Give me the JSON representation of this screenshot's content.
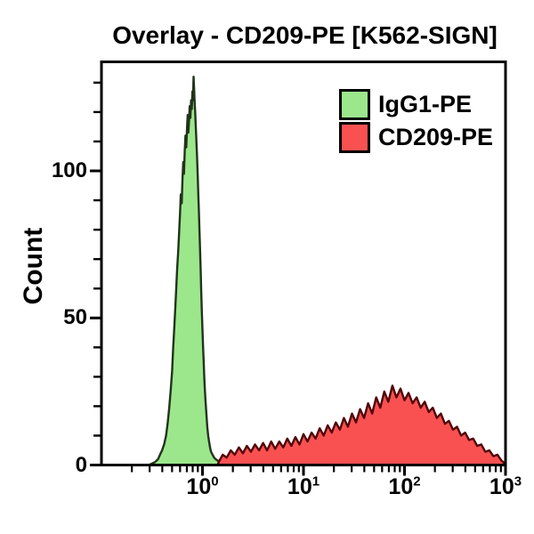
{
  "chart_data": {
    "type": "area",
    "title": "Overlay - CD209-PE [K562-SIGN]",
    "ylabel": "Count",
    "xlabel": "",
    "xscale": "log",
    "xlim_log": [
      -1,
      3
    ],
    "ylim": [
      0,
      137
    ],
    "grid": false,
    "legend_position": "top-right-inside",
    "frame_color": "#000000",
    "y_major_ticks": [
      {
        "value": 0,
        "label": "0"
      },
      {
        "value": 50,
        "label": "50"
      },
      {
        "value": 100,
        "label": "100"
      }
    ],
    "y_minor_tick_step": 10,
    "y_minor_tick_max": 130,
    "x_major_ticks": [
      {
        "log": 0,
        "base": "10",
        "exp": "0"
      },
      {
        "log": 1,
        "base": "10",
        "exp": "1"
      },
      {
        "log": 2,
        "base": "10",
        "exp": "2"
      },
      {
        "log": 3,
        "base": "10",
        "exp": "3"
      }
    ],
    "series": [
      {
        "name": "IgG1-PE",
        "fill": "#9CE78C",
        "edge": "#22331c",
        "peak_log_x": -0.09,
        "peak_count": 132,
        "points": [
          [
            -0.53,
            0
          ],
          [
            -0.5,
            0.5
          ],
          [
            -0.47,
            1
          ],
          [
            -0.44,
            2
          ],
          [
            -0.42,
            3.5
          ],
          [
            -0.4,
            5
          ],
          [
            -0.38,
            7
          ],
          [
            -0.36,
            10
          ],
          [
            -0.345,
            14
          ],
          [
            -0.33,
            19
          ],
          [
            -0.315,
            25
          ],
          [
            -0.3,
            32
          ],
          [
            -0.29,
            40
          ],
          [
            -0.28,
            46
          ],
          [
            -0.27,
            53
          ],
          [
            -0.26,
            60
          ],
          [
            -0.25,
            67
          ],
          [
            -0.24,
            73
          ],
          [
            -0.23,
            80
          ],
          [
            -0.22,
            87
          ],
          [
            -0.215,
            92
          ],
          [
            -0.205,
            89
          ],
          [
            -0.198,
            97
          ],
          [
            -0.19,
            103
          ],
          [
            -0.183,
            99
          ],
          [
            -0.175,
            107
          ],
          [
            -0.168,
            112
          ],
          [
            -0.16,
            108
          ],
          [
            -0.152,
            115
          ],
          [
            -0.146,
            119
          ],
          [
            -0.14,
            113
          ],
          [
            -0.133,
            117
          ],
          [
            -0.127,
            122
          ],
          [
            -0.12,
            118
          ],
          [
            -0.113,
            124
          ],
          [
            -0.106,
            121
          ],
          [
            -0.1,
            127
          ],
          [
            -0.094,
            124
          ],
          [
            -0.088,
            132
          ],
          [
            -0.083,
            128
          ],
          [
            -0.078,
            124
          ],
          [
            -0.072,
            120
          ],
          [
            -0.066,
            115
          ],
          [
            -0.06,
            110
          ],
          [
            -0.054,
            105
          ],
          [
            -0.048,
            99
          ],
          [
            -0.042,
            93
          ],
          [
            -0.036,
            87
          ],
          [
            -0.03,
            80
          ],
          [
            -0.024,
            73
          ],
          [
            -0.018,
            66
          ],
          [
            -0.012,
            59
          ],
          [
            -0.006,
            52
          ],
          [
            0.0,
            46
          ],
          [
            0.006,
            40
          ],
          [
            0.012,
            35
          ],
          [
            0.018,
            30
          ],
          [
            0.025,
            25
          ],
          [
            0.032,
            21
          ],
          [
            0.04,
            17
          ],
          [
            0.048,
            13
          ],
          [
            0.056,
            10
          ],
          [
            0.065,
            8
          ],
          [
            0.075,
            6
          ],
          [
            0.085,
            4.5
          ],
          [
            0.1,
            3.5
          ],
          [
            0.115,
            2.5
          ],
          [
            0.13,
            2
          ],
          [
            0.15,
            1.5
          ],
          [
            0.17,
            1.2
          ],
          [
            0.19,
            1
          ],
          [
            0.21,
            0.8
          ],
          [
            0.23,
            0.5
          ],
          [
            0.25,
            0.3
          ],
          [
            0.27,
            0
          ]
        ]
      },
      {
        "name": "CD209-PE",
        "fill": "#F95151",
        "edge": "#520508",
        "peak_log_x": 1.88,
        "peak_count": 27,
        "points": [
          [
            0.15,
            0
          ],
          [
            0.16,
            1
          ],
          [
            0.2,
            3.5
          ],
          [
            0.24,
            2.5
          ],
          [
            0.28,
            5
          ],
          [
            0.32,
            3.5
          ],
          [
            0.36,
            6
          ],
          [
            0.4,
            4
          ],
          [
            0.44,
            6.5
          ],
          [
            0.48,
            4.5
          ],
          [
            0.52,
            7
          ],
          [
            0.56,
            5
          ],
          [
            0.6,
            7.5
          ],
          [
            0.64,
            5
          ],
          [
            0.68,
            8
          ],
          [
            0.72,
            5.5
          ],
          [
            0.76,
            8
          ],
          [
            0.8,
            6
          ],
          [
            0.84,
            9
          ],
          [
            0.88,
            6.5
          ],
          [
            0.92,
            9.5
          ],
          [
            0.96,
            7
          ],
          [
            1.0,
            10.5
          ],
          [
            1.04,
            8
          ],
          [
            1.08,
            11
          ],
          [
            1.12,
            9
          ],
          [
            1.16,
            12.5
          ],
          [
            1.2,
            10
          ],
          [
            1.24,
            13.5
          ],
          [
            1.28,
            11
          ],
          [
            1.32,
            14.5
          ],
          [
            1.36,
            12
          ],
          [
            1.4,
            16
          ],
          [
            1.44,
            13
          ],
          [
            1.48,
            17.5
          ],
          [
            1.52,
            14.5
          ],
          [
            1.56,
            19
          ],
          [
            1.6,
            16
          ],
          [
            1.64,
            21
          ],
          [
            1.68,
            17.5
          ],
          [
            1.72,
            23
          ],
          [
            1.76,
            19.5
          ],
          [
            1.8,
            25
          ],
          [
            1.84,
            21.5
          ],
          [
            1.88,
            27
          ],
          [
            1.92,
            23
          ],
          [
            1.96,
            26
          ],
          [
            2.0,
            22
          ],
          [
            2.04,
            24.5
          ],
          [
            2.08,
            21
          ],
          [
            2.12,
            23
          ],
          [
            2.16,
            19.5
          ],
          [
            2.2,
            21.5
          ],
          [
            2.24,
            18
          ],
          [
            2.28,
            19.5
          ],
          [
            2.32,
            16
          ],
          [
            2.36,
            17.5
          ],
          [
            2.4,
            14
          ],
          [
            2.44,
            15
          ],
          [
            2.48,
            12
          ],
          [
            2.52,
            13
          ],
          [
            2.56,
            10
          ],
          [
            2.6,
            11
          ],
          [
            2.64,
            8.5
          ],
          [
            2.68,
            9
          ],
          [
            2.72,
            6.5
          ],
          [
            2.76,
            7
          ],
          [
            2.8,
            4.5
          ],
          [
            2.84,
            5
          ],
          [
            2.88,
            3
          ],
          [
            2.92,
            3.5
          ],
          [
            2.96,
            1.5
          ],
          [
            3.0,
            0.3
          ]
        ]
      }
    ]
  }
}
